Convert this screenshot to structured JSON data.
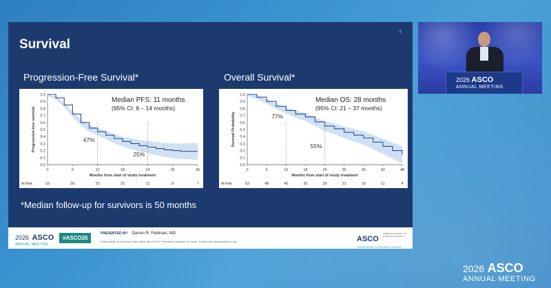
{
  "slide": {
    "title": "Survival",
    "page_marker": "8",
    "footnote": "*Median follow-up for survivors is 50 months"
  },
  "pfs_chart": {
    "heading": "Progression-Free Survival*",
    "median_text": "Median PFS: 11 months",
    "ci_text": "(95% CI: 8 – 14 months)",
    "annotation_12": "47%",
    "annotation_24": "25%",
    "ylabel": "Progression-free survival",
    "xlabel": "Months from start of study treatment",
    "at_risk_label": "At Risk",
    "x_ticks": [
      "0",
      "6",
      "12",
      "18",
      "24",
      "30",
      "36"
    ],
    "y_ticks": [
      "1.0",
      "0.9",
      "0.8",
      "0.7",
      "0.6",
      "0.5",
      "0.4",
      "0.3",
      "0.2",
      "0.1",
      "0.0"
    ],
    "at_risk": [
      "53",
      "36",
      "23",
      "15",
      "12",
      "8",
      "7"
    ]
  },
  "os_chart": {
    "heading": "Overall Survival*",
    "median_text": "Median OS: 28 months",
    "ci_text": "(95% CI: 21 – 37 months)",
    "annotation_12": "77%",
    "annotation_24": "55%",
    "ylabel": "Survival Probability",
    "xlabel": "Months from start of study treatment",
    "at_risk_label": "At Risk",
    "x_ticks": [
      "0",
      "6",
      "12",
      "18",
      "24",
      "30",
      "36",
      "42",
      "48"
    ],
    "y_ticks": [
      "1.0",
      "0.9",
      "0.8",
      "0.7",
      "0.6",
      "0.5",
      "0.4",
      "0.3",
      "0.2",
      "0.1",
      "0.0"
    ],
    "at_risk": [
      "53",
      "48",
      "40",
      "35",
      "29",
      "21",
      "16",
      "11",
      "4"
    ]
  },
  "chart_data": [
    {
      "type": "line",
      "title": "Progression-Free Survival*",
      "xlabel": "Months from start of study treatment",
      "ylabel": "Progression-free survival",
      "xlim": [
        0,
        36
      ],
      "ylim": [
        0,
        1
      ],
      "series": [
        {
          "x": [
            0,
            2,
            4,
            6,
            8,
            10,
            12,
            14,
            16,
            18,
            20,
            22,
            24,
            26,
            28,
            30,
            32,
            34,
            36
          ],
          "values": [
            1.0,
            0.95,
            0.85,
            0.72,
            0.6,
            0.52,
            0.47,
            0.42,
            0.37,
            0.33,
            0.3,
            0.27,
            0.25,
            0.23,
            0.21,
            0.2,
            0.19,
            0.19,
            0.19
          ]
        }
      ]
    },
    {
      "type": "line",
      "title": "Overall Survival*",
      "xlabel": "Months from start of study treatment",
      "ylabel": "Survival Probability",
      "xlim": [
        0,
        48
      ],
      "ylim": [
        0,
        1
      ],
      "series": [
        {
          "x": [
            0,
            3,
            6,
            9,
            12,
            15,
            18,
            21,
            24,
            27,
            30,
            33,
            36,
            39,
            42,
            45,
            48
          ],
          "values": [
            1.0,
            0.96,
            0.9,
            0.83,
            0.77,
            0.72,
            0.68,
            0.61,
            0.55,
            0.51,
            0.46,
            0.42,
            0.38,
            0.32,
            0.26,
            0.2,
            0.14
          ]
        }
      ]
    }
  ],
  "footer": {
    "logo_year": "2026",
    "logo_name": "ASCO",
    "logo_sub": "ANNUAL MEETING",
    "hashtag": "#ASCO26",
    "presented_by": "PRESENTED BY:",
    "presenter": "Darren R. Feldman, MD",
    "disclaimer": "Presentation is property of the author and ASCO. Permission required for reuse; contact permissions@asco.org",
    "asco_right": "ASCO",
    "asco_right_sub": "AMERICAN SOCIETY OF CLINICAL ONCOLOGY",
    "asco_right_tag": "KNOWLEDGE CONQUERS CANCER"
  },
  "video": {
    "podium_year": "2026",
    "podium_name": "ASCO",
    "podium_meeting": "ANNUAL MEETING"
  },
  "brand": {
    "year": "2026",
    "name": "ASCO",
    "meeting": "ANNUAL MEETING"
  },
  "colors": {
    "slide_bg": "#1c3a6e",
    "curve": "#2f4d8a",
    "band": "#cfe1f3",
    "accent_teal": "#1b8a80"
  }
}
